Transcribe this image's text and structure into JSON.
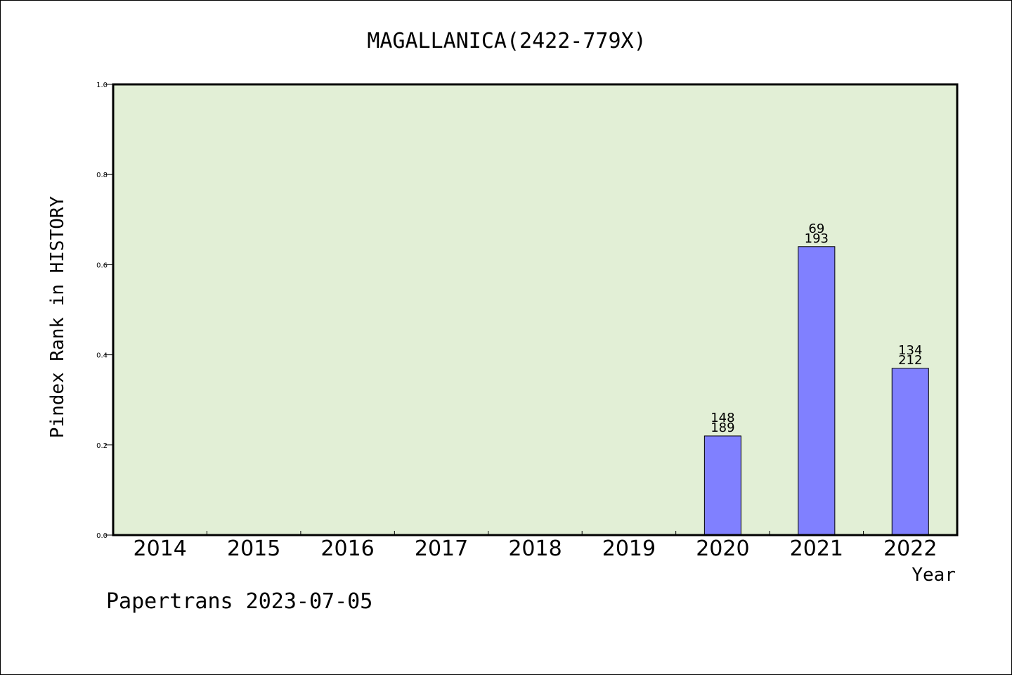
{
  "footer": "Papertrans 2023-07-05",
  "colors": {
    "plot_background": "#e2efd6",
    "bar_fill": "#8080ff",
    "bar_stroke": "#000000",
    "axis": "#000000"
  },
  "chart_data": {
    "type": "bar",
    "title": "MAGALLANICA(2422-779X)",
    "xlabel": "Year",
    "ylabel": "Pindex Rank in HISTORY",
    "categories": [
      "2014",
      "2015",
      "2016",
      "2017",
      "2018",
      "2019",
      "2020",
      "2021",
      "2022"
    ],
    "values": [
      null,
      null,
      null,
      null,
      null,
      null,
      0.22,
      0.64,
      0.37
    ],
    "bar_labels_top": [
      null,
      null,
      null,
      null,
      null,
      null,
      "148",
      "69",
      "134"
    ],
    "bar_labels_bottom": [
      null,
      null,
      null,
      null,
      null,
      null,
      "189",
      "193",
      "212"
    ],
    "ylim": [
      0,
      1.0
    ],
    "yticks": [
      "0.0",
      "0.2",
      "0.4",
      "0.6",
      "0.8",
      "1.0"
    ],
    "grid": false,
    "legend": "none"
  }
}
